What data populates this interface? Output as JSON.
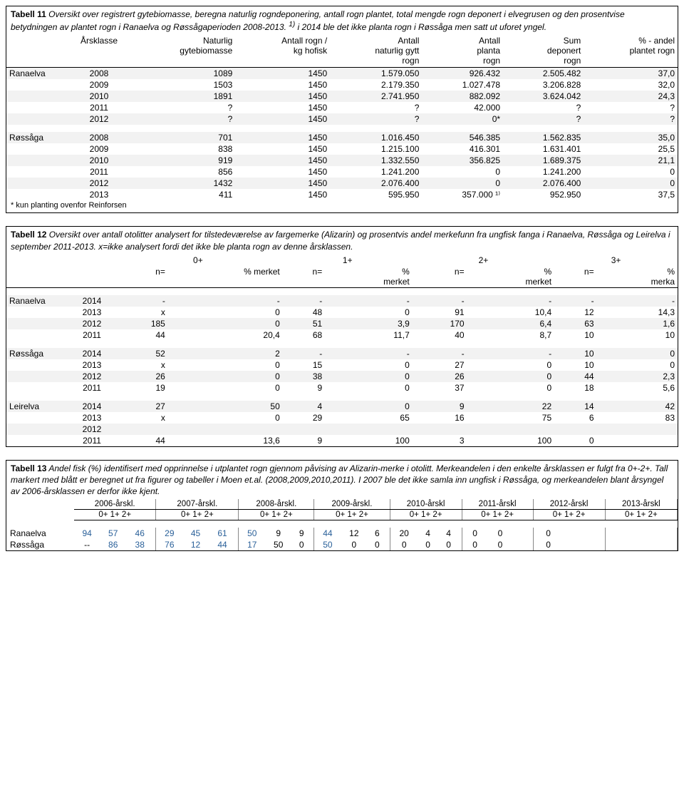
{
  "table11": {
    "caption_strong": "Tabell 11",
    "caption": " Oversikt over registrert gytebiomasse, beregna naturlig rogndeponering, antall rogn plantet, total mengde rogn deponert i elvegrusen og den prosentvise betydningen av plantet rogn i Ranaelva og Røssågaperioden 2008-2013. ",
    "caption_sup": "1)",
    "caption2": " i 2014 ble det ikke planta rogn i Røssåga men satt ut uforet yngel.",
    "headers": [
      "Årsklasse",
      "Naturlig\ngytebiomasse",
      "Antall rogn /\nkg hofisk",
      "Antall\nnaturlig gytt\nrogn",
      "Antall\nplanta\nrogn",
      "Sum\ndeponert\nrogn",
      "% - andel\nplantet rogn"
    ],
    "groups": [
      {
        "name": "Ranaelva",
        "rows": [
          [
            "2008",
            "1089",
            "1450",
            "1.579.050",
            "926.432",
            "2.505.482",
            "37,0"
          ],
          [
            "2009",
            "1503",
            "1450",
            "2.179.350",
            "1.027.478",
            "3.206.828",
            "32,0"
          ],
          [
            "2010",
            "1891",
            "1450",
            "2.741.950",
            "882.092",
            "3.624.042",
            "24,3"
          ],
          [
            "2011",
            "?",
            "1450",
            "?",
            "42.000",
            "?",
            "?"
          ],
          [
            "2012",
            "?",
            "1450",
            "?",
            "0*",
            "?",
            "?"
          ]
        ]
      },
      {
        "name": "Røssåga",
        "rows": [
          [
            "2008",
            "701",
            "1450",
            "1.016.450",
            "546.385",
            "1.562.835",
            "35,0"
          ],
          [
            "2009",
            "838",
            "1450",
            "1.215.100",
            "416.301",
            "1.631.401",
            "25,5"
          ],
          [
            "2010",
            "919",
            "1450",
            "1.332.550",
            "356.825",
            "1.689.375",
            "21,1"
          ],
          [
            "2011",
            "856",
            "1450",
            "1.241.200",
            "0",
            "1.241.200",
            "0"
          ],
          [
            "2012",
            "1432",
            "1450",
            "2.076.400",
            "0",
            "2.076.400",
            "0"
          ],
          [
            "2013",
            "411",
            "1450",
            "595.950",
            "357.000 ¹⁾",
            "952.950",
            "37,5"
          ]
        ]
      }
    ],
    "footnote": "* kun planting ovenfor Reinforsen"
  },
  "table12": {
    "caption_strong": "Tabell 12",
    "caption": " Oversikt over antall otolitter analysert for tilstedeværelse av fargemerke (Alizarin) og prosentvis andel merkefunn fra ungfisk fanga i Ranaelva, Røssåga og Leirelva i september 2011-2013. x=ikke analysert fordi det ikke ble planta rogn av denne årsklassen.",
    "age_groups": [
      "0+",
      "1+",
      "2+",
      "3+"
    ],
    "sub_headers": [
      "n=",
      "% merket",
      "n=",
      "%\nmerket",
      "n=",
      "%\nmerket",
      "n=",
      "%\nmerka"
    ],
    "groups": [
      {
        "name": "Ranaelva",
        "rows": [
          [
            "2014",
            "-",
            "-",
            "-",
            "-",
            "-",
            "-",
            "-",
            "-"
          ],
          [
            "2013",
            "x",
            "0",
            "48",
            "0",
            "91",
            "10,4",
            "12",
            "14,3"
          ],
          [
            "2012",
            "185",
            "0",
            "51",
            "3,9",
            "170",
            "6,4",
            "63",
            "1,6"
          ],
          [
            "2011",
            "44",
            "20,4",
            "68",
            "11,7",
            "40",
            "8,7",
            "10",
            "10"
          ]
        ]
      },
      {
        "name": "Røssåga",
        "rows": [
          [
            "2014",
            "52",
            "2",
            "-",
            "-",
            "-",
            "-",
            "10",
            "0"
          ],
          [
            "2013",
            "x",
            "0",
            "15",
            "0",
            "27",
            "0",
            "10",
            "0"
          ],
          [
            "2012",
            "26",
            "0",
            "38",
            "0",
            "26",
            "0",
            "44",
            "2,3"
          ],
          [
            "2011",
            "19",
            "0",
            "9",
            "0",
            "37",
            "0",
            "18",
            "5,6"
          ]
        ]
      },
      {
        "name": "Leirelva",
        "rows": [
          [
            "2014",
            "27",
            "50",
            "4",
            "0",
            "9",
            "22",
            "14",
            "42"
          ],
          [
            "2013",
            "x",
            "0",
            "29",
            "65",
            "16",
            "75",
            "6",
            "83"
          ],
          [
            "2012",
            "",
            "",
            "",
            "",
            "",
            "",
            "",
            ""
          ],
          [
            "2011",
            "44",
            "13,6",
            "9",
            "100",
            "3",
            "100",
            "0",
            ""
          ]
        ]
      }
    ]
  },
  "table13": {
    "caption_strong": "Tabell 13",
    "caption": " Andel fisk (%) identifisert med opprinnelse i utplantet rogn gjennom påvising av Alizarin-merke i otolitt. Merkeandelen i den enkelte årsklassen er fulgt fra 0+-2+. Tall markert med blått er beregnet ut fra figurer og tabeller i Moen et.al. (2008,2009,2010,2011). I 2007 ble det ikke samla inn ungfisk i Røssåga, og merkeandelen blant årsyngel av 2006-årsklassen er derfor ikke kjent.",
    "year_headers": [
      "2006-årskl.",
      "2007-årskl.",
      "2008-årskl.",
      "2009-årskl.",
      "2010-årskl",
      "2011-årskl",
      "2012-årskl",
      "2013-årskl"
    ],
    "sub": "0+ 1+ 2+",
    "rows": [
      {
        "name": "Ranaelva",
        "cells": [
          [
            "94",
            "57",
            "46"
          ],
          [
            "29",
            "45",
            "61"
          ],
          [
            "50",
            "9",
            "9"
          ],
          [
            "44",
            "12",
            "6"
          ],
          [
            "20",
            "4",
            "4"
          ],
          [
            "0",
            "0",
            ""
          ],
          [
            "0",
            "",
            ""
          ],
          [
            "",
            "",
            " "
          ]
        ],
        "blue": [
          [
            0,
            0
          ],
          [
            0,
            1
          ],
          [
            0,
            2
          ],
          [
            1,
            0
          ],
          [
            1,
            1
          ],
          [
            1,
            2
          ],
          [
            2,
            0
          ],
          [
            3,
            0
          ]
        ]
      },
      {
        "name": "Røssåga",
        "cells": [
          [
            "--",
            "86",
            "38"
          ],
          [
            "76",
            "12",
            "44"
          ],
          [
            "17",
            "50",
            "0"
          ],
          [
            "50",
            "0",
            "0"
          ],
          [
            "0",
            "0",
            "0"
          ],
          [
            "0",
            "0",
            ""
          ],
          [
            "0",
            "",
            ""
          ],
          [
            "",
            "",
            " "
          ]
        ],
        "blue": [
          [
            0,
            1
          ],
          [
            0,
            2
          ],
          [
            1,
            0
          ],
          [
            1,
            1
          ],
          [
            1,
            2
          ],
          [
            2,
            0
          ],
          [
            3,
            0
          ]
        ]
      }
    ]
  }
}
